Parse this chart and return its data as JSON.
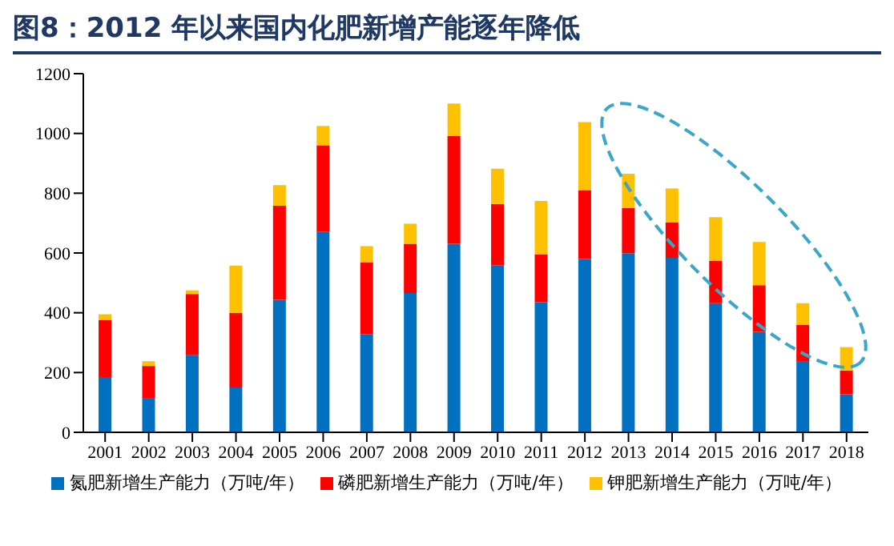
{
  "chart_data": {
    "type": "bar",
    "title": "图8：2012 年以来国内化肥新增产能逐年降低",
    "stacked": true,
    "categories": [
      "2001",
      "2002",
      "2003",
      "2004",
      "2005",
      "2006",
      "2007",
      "2008",
      "2009",
      "2010",
      "2011",
      "2012",
      "2013",
      "2014",
      "2015",
      "2016",
      "2017",
      "2018"
    ],
    "series": [
      {
        "name": "氮肥新增生产能力（万吨/年）",
        "color": "#0070c0",
        "values": [
          185,
          115,
          258,
          150,
          443,
          670,
          329,
          466,
          631,
          559,
          435,
          580,
          599,
          584,
          432,
          336,
          236,
          127
        ]
      },
      {
        "name": "磷肥新增生产能力（万吨/年）",
        "color": "#ff0000",
        "values": [
          190,
          107,
          205,
          250,
          315,
          290,
          239,
          165,
          361,
          205,
          160,
          230,
          152,
          118,
          142,
          156,
          123,
          80
        ]
      },
      {
        "name": "钾肥新增生产能力（万吨/年）",
        "color": "#ffc000",
        "values": [
          20,
          16,
          12,
          158,
          69,
          65,
          55,
          67,
          108,
          118,
          179,
          228,
          114,
          114,
          146,
          145,
          73,
          78
        ]
      }
    ],
    "ylim": [
      0,
      1200
    ],
    "yticks": [
      0,
      200,
      400,
      600,
      800,
      1000,
      1200
    ],
    "legend": "bottom"
  }
}
